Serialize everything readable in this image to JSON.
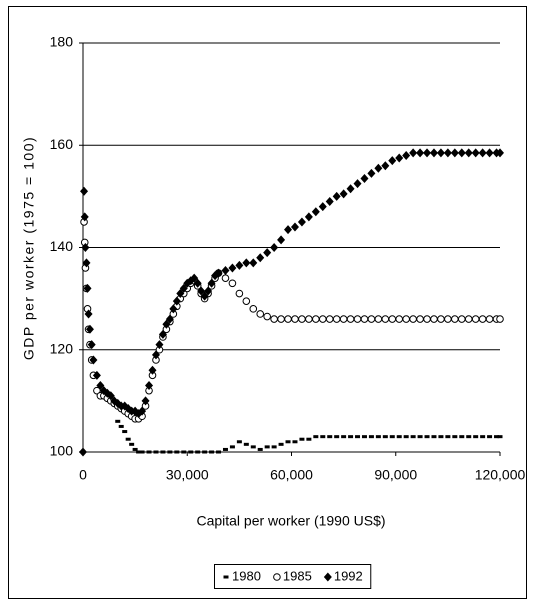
{
  "chart_data": {
    "type": "scatter",
    "xlabel": "Capital per worker (1990 US$)",
    "ylabel": "GDP per worker (1975 = 100)",
    "xlim": [
      0,
      120000
    ],
    "xticks": [
      0,
      {
        "value": 30000,
        "label": "30,000"
      },
      {
        "value": 60000,
        "label": "60,000"
      },
      {
        "value": 90000,
        "label": "90,000"
      },
      {
        "value": 120000,
        "label": "120,000"
      }
    ],
    "ylim": [
      100,
      180
    ],
    "yticks": [
      100,
      120,
      140,
      160,
      180
    ],
    "grid": true,
    "legend": "bottom",
    "series": [
      {
        "name": "1980",
        "marker": "square",
        "color": "#000000",
        "x": [
          0,
          10000,
          11000,
          12000,
          13000,
          14000,
          15000,
          16000,
          17000,
          19000,
          21000,
          23000,
          25000,
          27000,
          29000,
          31000,
          33000,
          35000,
          37000,
          39000,
          41000,
          43000,
          45000,
          47000,
          49000,
          51000,
          53000,
          55000,
          57000,
          59000,
          61000,
          63000,
          65000,
          67000,
          69000,
          71000,
          73000,
          75000,
          77000,
          79000,
          81000,
          83000,
          85000,
          87000,
          89000,
          91000,
          93000,
          95000,
          97000,
          99000,
          101000,
          103000,
          105000,
          107000,
          109000,
          111000,
          113000,
          115000,
          117000,
          119000,
          120000
        ],
        "values": [
          100,
          106,
          105,
          104,
          102.5,
          101.5,
          100.5,
          100,
          100,
          100,
          100,
          100,
          100,
          100,
          100,
          100,
          100,
          100,
          100,
          100,
          100.5,
          101,
          102,
          101.5,
          101,
          100.5,
          101,
          101,
          101.5,
          102,
          102,
          102.5,
          102.5,
          103,
          103,
          103,
          103,
          103,
          103,
          103,
          103,
          103,
          103,
          103,
          103,
          103,
          103,
          103,
          103,
          103,
          103,
          103,
          103,
          103,
          103,
          103,
          103,
          103,
          103,
          103,
          103
        ]
      },
      {
        "name": "1985",
        "marker": "circle",
        "color": "#000000",
        "x": [
          300,
          500,
          700,
          1000,
          1300,
          1600,
          2000,
          2500,
          3000,
          4000,
          5000,
          6000,
          7000,
          8000,
          9000,
          10000,
          11000,
          12000,
          13000,
          14000,
          15000,
          16000,
          17000,
          18000,
          19000,
          20000,
          21000,
          22000,
          23000,
          24000,
          25000,
          26000,
          27000,
          28000,
          29000,
          30000,
          31000,
          32000,
          33000,
          34000,
          35000,
          36000,
          37000,
          38000,
          39000,
          41000,
          43000,
          45000,
          47000,
          49000,
          51000,
          53000,
          55000,
          57000,
          59000,
          61000,
          63000,
          65000,
          67000,
          69000,
          71000,
          73000,
          75000,
          77000,
          79000,
          81000,
          83000,
          85000,
          87000,
          89000,
          91000,
          93000,
          95000,
          97000,
          99000,
          101000,
          103000,
          105000,
          107000,
          109000,
          111000,
          113000,
          115000,
          117000,
          119000,
          120000
        ],
        "values": [
          145,
          141,
          136,
          132,
          128,
          124,
          121,
          118,
          115,
          112,
          111,
          111,
          110.5,
          110,
          109.5,
          109,
          108.5,
          108,
          107.5,
          107,
          106.5,
          106.5,
          107,
          109,
          112,
          115,
          118,
          120,
          122.5,
          124,
          125.5,
          127,
          128.5,
          130,
          131,
          132,
          133,
          133.5,
          132.5,
          131,
          130,
          131,
          132.5,
          134,
          135,
          134,
          133,
          131,
          129.5,
          128,
          127,
          126.5,
          126,
          126,
          126,
          126,
          126,
          126,
          126,
          126,
          126,
          126,
          126,
          126,
          126,
          126,
          126,
          126,
          126,
          126,
          126,
          126,
          126,
          126,
          126,
          126,
          126,
          126,
          126,
          126,
          126,
          126,
          126,
          126,
          126,
          126
        ]
      },
      {
        "name": "1992",
        "marker": "diamond",
        "color": "#000000",
        "x": [
          0,
          300,
          500,
          700,
          1000,
          1300,
          1600,
          2000,
          2500,
          3000,
          4000,
          5000,
          6000,
          7000,
          8000,
          9000,
          10000,
          11000,
          12000,
          13000,
          14000,
          15000,
          16000,
          17000,
          18000,
          19000,
          20000,
          21000,
          22000,
          23000,
          24000,
          25000,
          26000,
          27000,
          28000,
          29000,
          30000,
          31000,
          32000,
          33000,
          34000,
          35000,
          36000,
          37000,
          38000,
          39000,
          41000,
          43000,
          45000,
          47000,
          49000,
          51000,
          53000,
          55000,
          57000,
          59000,
          61000,
          63000,
          65000,
          67000,
          69000,
          71000,
          73000,
          75000,
          77000,
          79000,
          81000,
          83000,
          85000,
          87000,
          89000,
          91000,
          93000,
          95000,
          97000,
          99000,
          101000,
          103000,
          105000,
          107000,
          109000,
          111000,
          113000,
          115000,
          117000,
          119000,
          120000
        ],
        "values": [
          100,
          151,
          146,
          140,
          137,
          132,
          127,
          124,
          121,
          118,
          115,
          113,
          112,
          111.5,
          111,
          110,
          109.5,
          109,
          109,
          108.5,
          108,
          108,
          107.5,
          108,
          110,
          113,
          116,
          119,
          121,
          123,
          125,
          126,
          128,
          129.5,
          131,
          132,
          133,
          133.5,
          134,
          133,
          131.5,
          130.5,
          131.5,
          133,
          134.5,
          135,
          135.5,
          136,
          136.5,
          137,
          137,
          138,
          139,
          140,
          141.5,
          143.5,
          144,
          145,
          146,
          147,
          148,
          149,
          150,
          150.5,
          151.5,
          152.5,
          153.5,
          154.5,
          155.5,
          156,
          157,
          157.5,
          158,
          158.5,
          158.5,
          158.5,
          158.5,
          158.5,
          158.5,
          158.5,
          158.5,
          158.5,
          158.5,
          158.5,
          158.5,
          158.5,
          158.5
        ]
      }
    ]
  }
}
